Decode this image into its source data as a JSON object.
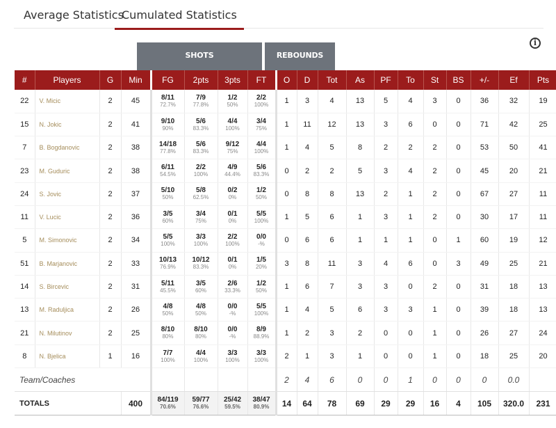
{
  "tabs": [
    {
      "label": "Average Statistics",
      "active": false
    },
    {
      "label": "Cumulated Statistics",
      "active": true
    }
  ],
  "groups": {
    "shots": "SHOTS",
    "rebounds": "REBOUNDS"
  },
  "columns": [
    "#",
    "Players",
    "G",
    "Min",
    "FG",
    "2pts",
    "3pts",
    "FT",
    "O",
    "D",
    "Tot",
    "As",
    "PF",
    "To",
    "St",
    "BS",
    "+/-",
    "Ef",
    "Pts"
  ],
  "players": [
    {
      "num": "22",
      "name": "V. Micic",
      "g": "2",
      "min": "45",
      "fg": "8/11",
      "fgp": "72.7%",
      "p2": "7/9",
      "p2p": "77.8%",
      "p3": "1/2",
      "p3p": "50%",
      "ft": "2/2",
      "ftp": "100%",
      "o": "1",
      "d": "3",
      "tot": "4",
      "as": "13",
      "pf": "5",
      "to": "4",
      "st": "3",
      "bs": "0",
      "pm": "36",
      "ef": "32",
      "pts": "19"
    },
    {
      "num": "15",
      "name": "N. Jokic",
      "g": "2",
      "min": "41",
      "fg": "9/10",
      "fgp": "90%",
      "p2": "5/6",
      "p2p": "83.3%",
      "p3": "4/4",
      "p3p": "100%",
      "ft": "3/4",
      "ftp": "75%",
      "o": "1",
      "d": "11",
      "tot": "12",
      "as": "13",
      "pf": "3",
      "to": "6",
      "st": "0",
      "bs": "0",
      "pm": "71",
      "ef": "42",
      "pts": "25"
    },
    {
      "num": "7",
      "name": "B. Bogdanovic",
      "g": "2",
      "min": "38",
      "fg": "14/18",
      "fgp": "77.8%",
      "p2": "5/6",
      "p2p": "83.3%",
      "p3": "9/12",
      "p3p": "75%",
      "ft": "4/4",
      "ftp": "100%",
      "o": "1",
      "d": "4",
      "tot": "5",
      "as": "8",
      "pf": "2",
      "to": "2",
      "st": "2",
      "bs": "0",
      "pm": "53",
      "ef": "50",
      "pts": "41"
    },
    {
      "num": "23",
      "name": "M. Guduric",
      "g": "2",
      "min": "38",
      "fg": "6/11",
      "fgp": "54.5%",
      "p2": "2/2",
      "p2p": "100%",
      "p3": "4/9",
      "p3p": "44.4%",
      "ft": "5/6",
      "ftp": "83.3%",
      "o": "0",
      "d": "2",
      "tot": "2",
      "as": "5",
      "pf": "3",
      "to": "4",
      "st": "2",
      "bs": "0",
      "pm": "45",
      "ef": "20",
      "pts": "21"
    },
    {
      "num": "24",
      "name": "S. Jovic",
      "g": "2",
      "min": "37",
      "fg": "5/10",
      "fgp": "50%",
      "p2": "5/8",
      "p2p": "62.5%",
      "p3": "0/2",
      "p3p": "0%",
      "ft": "1/2",
      "ftp": "50%",
      "o": "0",
      "d": "8",
      "tot": "8",
      "as": "13",
      "pf": "2",
      "to": "1",
      "st": "2",
      "bs": "0",
      "pm": "67",
      "ef": "27",
      "pts": "11"
    },
    {
      "num": "11",
      "name": "V. Lucic",
      "g": "2",
      "min": "36",
      "fg": "3/5",
      "fgp": "60%",
      "p2": "3/4",
      "p2p": "75%",
      "p3": "0/1",
      "p3p": "0%",
      "ft": "5/5",
      "ftp": "100%",
      "o": "1",
      "d": "5",
      "tot": "6",
      "as": "1",
      "pf": "3",
      "to": "1",
      "st": "2",
      "bs": "0",
      "pm": "30",
      "ef": "17",
      "pts": "11"
    },
    {
      "num": "5",
      "name": "M. Simonovic",
      "g": "2",
      "min": "34",
      "fg": "5/5",
      "fgp": "100%",
      "p2": "3/3",
      "p2p": "100%",
      "p3": "2/2",
      "p3p": "100%",
      "ft": "0/0",
      "ftp": "-%",
      "o": "0",
      "d": "6",
      "tot": "6",
      "as": "1",
      "pf": "1",
      "to": "1",
      "st": "0",
      "bs": "1",
      "pm": "60",
      "ef": "19",
      "pts": "12"
    },
    {
      "num": "51",
      "name": "B. Marjanovic",
      "g": "2",
      "min": "33",
      "fg": "10/13",
      "fgp": "76.9%",
      "p2": "10/12",
      "p2p": "83.3%",
      "p3": "0/1",
      "p3p": "0%",
      "ft": "1/5",
      "ftp": "20%",
      "o": "3",
      "d": "8",
      "tot": "11",
      "as": "3",
      "pf": "4",
      "to": "6",
      "st": "0",
      "bs": "3",
      "pm": "49",
      "ef": "25",
      "pts": "21"
    },
    {
      "num": "14",
      "name": "S. Bircevic",
      "g": "2",
      "min": "31",
      "fg": "5/11",
      "fgp": "45.5%",
      "p2": "3/5",
      "p2p": "60%",
      "p3": "2/6",
      "p3p": "33.3%",
      "ft": "1/2",
      "ftp": "50%",
      "o": "1",
      "d": "6",
      "tot": "7",
      "as": "3",
      "pf": "3",
      "to": "0",
      "st": "2",
      "bs": "0",
      "pm": "31",
      "ef": "18",
      "pts": "13"
    },
    {
      "num": "13",
      "name": "M. Raduljica",
      "g": "2",
      "min": "26",
      "fg": "4/8",
      "fgp": "50%",
      "p2": "4/8",
      "p2p": "50%",
      "p3": "0/0",
      "p3p": "-%",
      "ft": "5/5",
      "ftp": "100%",
      "o": "1",
      "d": "4",
      "tot": "5",
      "as": "6",
      "pf": "3",
      "to": "3",
      "st": "1",
      "bs": "0",
      "pm": "39",
      "ef": "18",
      "pts": "13"
    },
    {
      "num": "21",
      "name": "N. Milutinov",
      "g": "2",
      "min": "25",
      "fg": "8/10",
      "fgp": "80%",
      "p2": "8/10",
      "p2p": "80%",
      "p3": "0/0",
      "p3p": "-%",
      "ft": "8/9",
      "ftp": "88.9%",
      "o": "1",
      "d": "2",
      "tot": "3",
      "as": "2",
      "pf": "0",
      "to": "0",
      "st": "1",
      "bs": "0",
      "pm": "26",
      "ef": "27",
      "pts": "24"
    },
    {
      "num": "8",
      "name": "N. Bjelica",
      "g": "1",
      "min": "16",
      "fg": "7/7",
      "fgp": "100%",
      "p2": "4/4",
      "p2p": "100%",
      "p3": "3/3",
      "p3p": "100%",
      "ft": "3/3",
      "ftp": "100%",
      "o": "2",
      "d": "1",
      "tot": "3",
      "as": "1",
      "pf": "0",
      "to": "0",
      "st": "1",
      "bs": "0",
      "pm": "18",
      "ef": "25",
      "pts": "20"
    }
  ],
  "team": {
    "label": "Team/Coaches",
    "o": "2",
    "d": "4",
    "tot": "6",
    "as": "0",
    "pf": "0",
    "to": "1",
    "st": "0",
    "bs": "0",
    "pm": "0",
    "ef": "0.0"
  },
  "totals": {
    "label": "TOTALS",
    "min": "400",
    "fg": "84/119",
    "fgp": "70.6%",
    "p2": "59/77",
    "p2p": "76.6%",
    "p3": "25/42",
    "p3p": "59.5%",
    "ft": "38/47",
    "ftp": "80.9%",
    "o": "14",
    "d": "64",
    "tot": "78",
    "as": "69",
    "pf": "29",
    "to": "29",
    "st": "16",
    "bs": "4",
    "pm": "105",
    "ef": "320.0",
    "pts": "231"
  }
}
